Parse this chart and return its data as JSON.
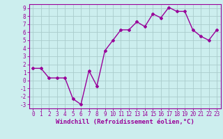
{
  "x": [
    0,
    1,
    2,
    3,
    4,
    5,
    6,
    7,
    8,
    9,
    10,
    11,
    12,
    13,
    14,
    15,
    16,
    17,
    18,
    19,
    20,
    21,
    22,
    23
  ],
  "y": [
    1.5,
    1.5,
    0.3,
    0.3,
    0.3,
    -2.3,
    -3.0,
    1.2,
    -0.7,
    3.7,
    5.0,
    6.3,
    6.3,
    7.3,
    6.7,
    8.3,
    7.8,
    9.1,
    8.6,
    8.6,
    6.3,
    5.5,
    5.0,
    6.3
  ],
  "line_color": "#990099",
  "marker": "D",
  "marker_size": 2.0,
  "bg_color": "#cceeee",
  "grid_color": "#aacccc",
  "xlabel": "Windchill (Refroidissement éolien,°C)",
  "xlabel_fontsize": 6.5,
  "xlim": [
    -0.5,
    23.5
  ],
  "ylim": [
    -3.5,
    9.5
  ],
  "yticks": [
    -3,
    -2,
    -1,
    0,
    1,
    2,
    3,
    4,
    5,
    6,
    7,
    8,
    9
  ],
  "xticks": [
    0,
    1,
    2,
    3,
    4,
    5,
    6,
    7,
    8,
    9,
    10,
    11,
    12,
    13,
    14,
    15,
    16,
    17,
    18,
    19,
    20,
    21,
    22,
    23
  ],
  "tick_fontsize": 5.5,
  "line_width": 1.0
}
